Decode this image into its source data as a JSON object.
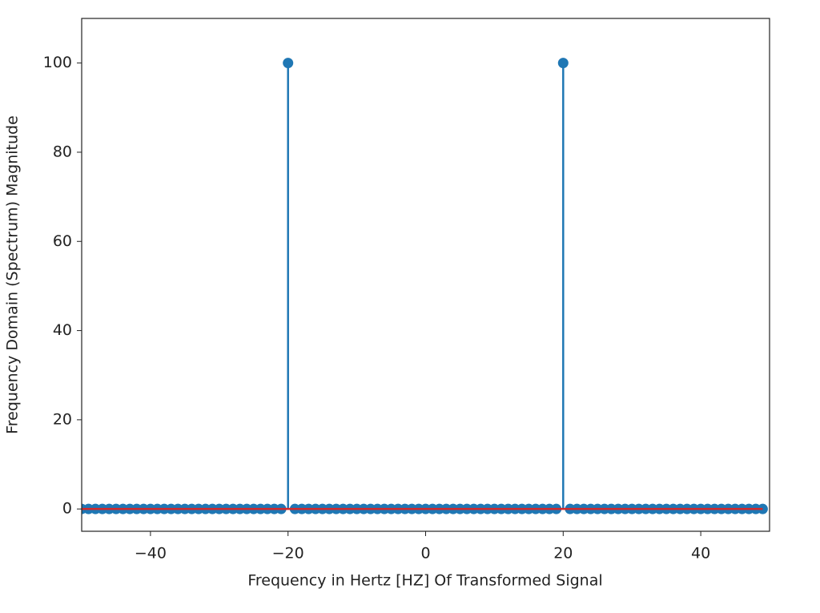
{
  "chart_data": {
    "type": "stem",
    "x_label": "Frequency in Hertz [HZ] Of Transformed Signal",
    "y_label": "Frequency Domain (Spectrum) Magnitude",
    "x": [
      -50,
      -49,
      -48,
      -47,
      -46,
      -45,
      -44,
      -43,
      -42,
      -41,
      -40,
      -39,
      -38,
      -37,
      -36,
      -35,
      -34,
      -33,
      -32,
      -31,
      -30,
      -29,
      -28,
      -27,
      -26,
      -25,
      -24,
      -23,
      -22,
      -21,
      -20,
      -19,
      -18,
      -17,
      -16,
      -15,
      -14,
      -13,
      -12,
      -11,
      -10,
      -9,
      -8,
      -7,
      -6,
      -5,
      -4,
      -3,
      -2,
      -1,
      0,
      1,
      2,
      3,
      4,
      5,
      6,
      7,
      8,
      9,
      10,
      11,
      12,
      13,
      14,
      15,
      16,
      17,
      18,
      19,
      20,
      21,
      22,
      23,
      24,
      25,
      26,
      27,
      28,
      29,
      30,
      31,
      32,
      33,
      34,
      35,
      36,
      37,
      38,
      39,
      40,
      41,
      42,
      43,
      44,
      45,
      46,
      47,
      48,
      49
    ],
    "values": [
      0,
      0,
      0,
      0,
      0,
      0,
      0,
      0,
      0,
      0,
      0,
      0,
      0,
      0,
      0,
      0,
      0,
      0,
      0,
      0,
      0,
      0,
      0,
      0,
      0,
      0,
      0,
      0,
      0,
      0,
      100,
      0,
      0,
      0,
      0,
      0,
      0,
      0,
      0,
      0,
      0,
      0,
      0,
      0,
      0,
      0,
      0,
      0,
      0,
      0,
      0,
      0,
      0,
      0,
      0,
      0,
      0,
      0,
      0,
      0,
      0,
      0,
      0,
      0,
      0,
      0,
      0,
      0,
      0,
      0,
      100,
      0,
      0,
      0,
      0,
      0,
      0,
      0,
      0,
      0,
      0,
      0,
      0,
      0,
      0,
      0,
      0,
      0,
      0,
      0,
      0,
      0,
      0,
      0,
      0,
      0,
      0,
      0,
      0,
      0
    ],
    "color": "#1f77b4",
    "baseline_color": "#d62728",
    "xlim": [
      -50,
      50
    ],
    "xticks": [
      {
        "value": -40,
        "label": "−40"
      },
      {
        "value": -20,
        "label": "−20"
      },
      0,
      20,
      40
    ],
    "ylim": [
      -5,
      110
    ],
    "yticks": [
      0,
      20,
      40,
      60,
      80,
      100
    ]
  }
}
